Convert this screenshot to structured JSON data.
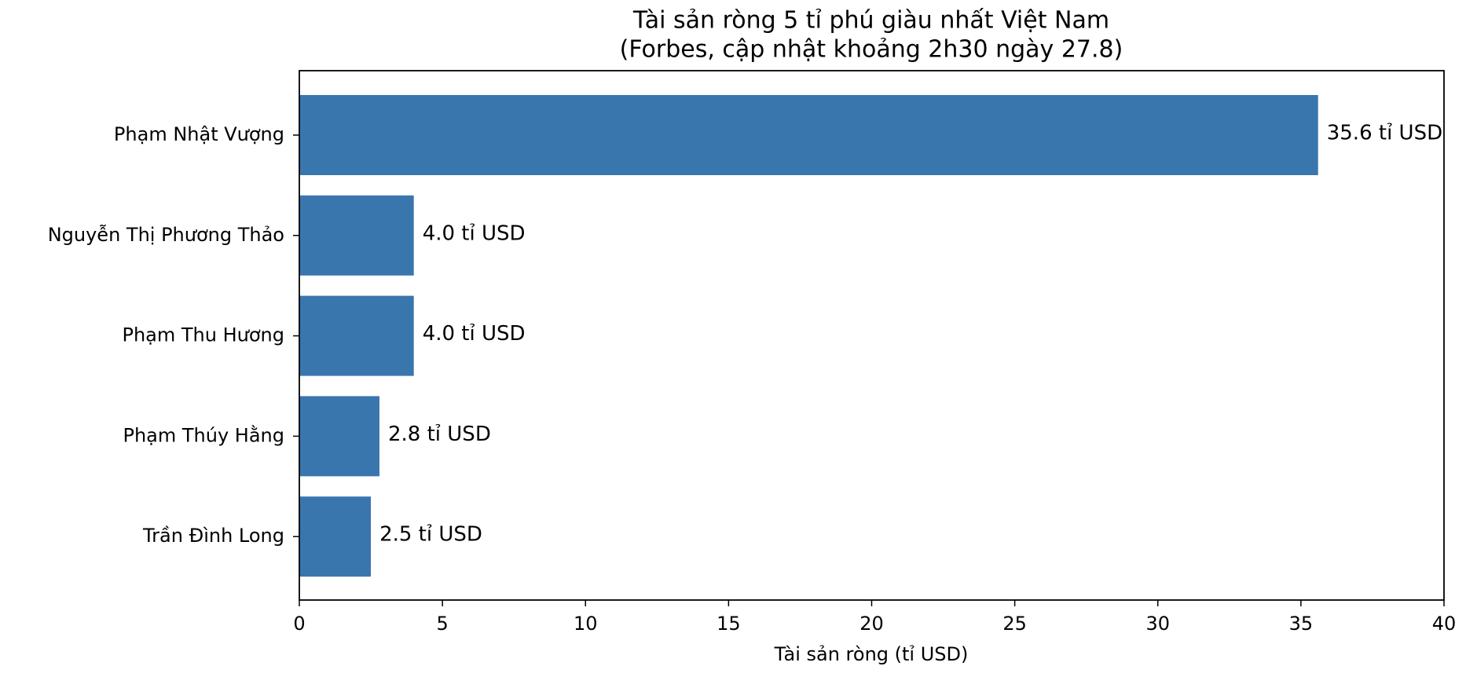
{
  "chart_data": {
    "type": "barh",
    "title": "Tài sản ròng 5 tỉ phú giàu nhất Việt Nam",
    "subtitle": "(Forbes, cập nhật khoảng 2h30 ngày 27.8)",
    "x_label": "Tài sản ròng (tỉ USD)",
    "categories": [
      "Phạm Nhật Vượng",
      "Nguyễn Thị Phương Thảo",
      "Phạm Thu Hương",
      "Phạm Thúy Hằng",
      "Trần Đình Long"
    ],
    "values": [
      35.6,
      4.0,
      4.0,
      2.8,
      2.5
    ],
    "value_labels": [
      "35.6 tỉ USD",
      "4.0 tỉ USD",
      "4.0 tỉ USD",
      "2.8 tỉ USD",
      "2.5 tỉ USD"
    ],
    "color": "#3a76ae",
    "xlim": [
      0,
      40
    ],
    "xticks": [
      0,
      5,
      10,
      15,
      20,
      25,
      30,
      35,
      40
    ]
  }
}
